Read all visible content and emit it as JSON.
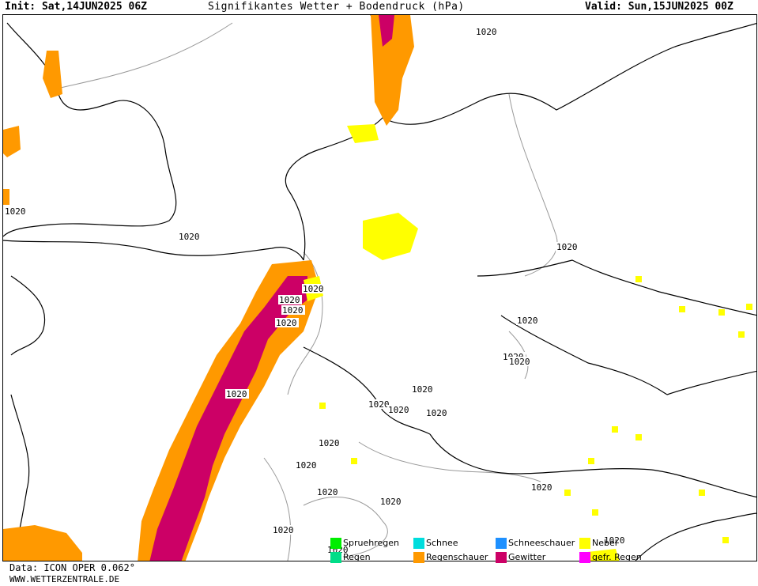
{
  "header": {
    "init": "Init: Sat,14JUN2025 06Z",
    "title": "Signifikantes Wetter + Bodendruck (hPa)",
    "valid": "Valid: Sun,15JUN2025 00Z"
  },
  "footer": {
    "data_source": "Data: ICON OPER 0.062°",
    "site": "WWW.WETTERZENTRALE.DE"
  },
  "legend": [
    {
      "label": "Spruehregen",
      "color": "#00ee00"
    },
    {
      "label": "Schnee",
      "color": "#00dddd"
    },
    {
      "label": "Schneeschauer",
      "color": "#1e90ff"
    },
    {
      "label": "Nebel",
      "color": "#ffff00"
    },
    {
      "label": "Regen",
      "color": "#00dd88"
    },
    {
      "label": "Regenschauer",
      "color": "#ff9900"
    },
    {
      "label": "Gewitter",
      "color": "#cc0066"
    },
    {
      "label": "gefr. Regen",
      "color": "#ff00ff"
    }
  ],
  "isobar_labels": [
    "1020",
    "1020",
    "1020",
    "1020",
    "1020",
    "1020",
    "1020",
    "1020",
    "1020",
    "1020",
    "1020",
    "1020",
    "1020",
    "1020",
    "1020",
    "1020",
    "1020",
    "1020",
    "1020",
    "1020",
    "1020",
    "1020",
    "1020",
    "1020"
  ],
  "colors": {
    "coast": "#000000",
    "border": "#888888",
    "shower": "#ff9900",
    "thunder": "#cc0066",
    "fog": "#ffff00"
  }
}
